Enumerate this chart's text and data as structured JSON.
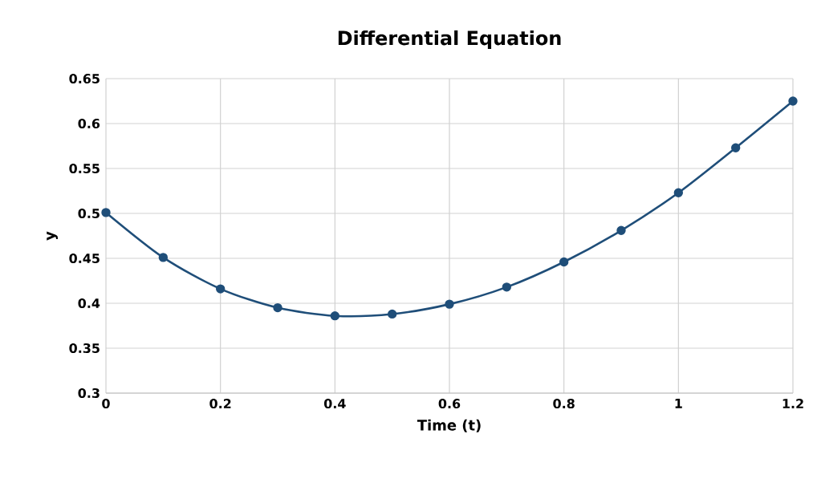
{
  "chart_data": {
    "type": "line",
    "title": "Differential Equation",
    "xlabel": "Time (t)",
    "ylabel": "y",
    "x": [
      0,
      0.1,
      0.2,
      0.3,
      0.4,
      0.5,
      0.6,
      0.7,
      0.8,
      0.9,
      1.0,
      1.1,
      1.2
    ],
    "series": [
      {
        "color": "#1f4e79",
        "values": [
          0.501,
          0.451,
          0.416,
          0.395,
          0.386,
          0.388,
          0.399,
          0.418,
          0.446,
          0.481,
          0.523,
          0.573,
          0.625
        ]
      }
    ],
    "xlim": [
      0,
      1.2
    ],
    "xticks": [
      0,
      0.2,
      0.4,
      0.6,
      0.8,
      1,
      1.2
    ],
    "ylim": [
      0.3,
      0.65
    ],
    "yticks": [
      0.3,
      0.35,
      0.4,
      0.45,
      0.5,
      0.55,
      0.6,
      0.65
    ],
    "grid": true,
    "marker": "circle",
    "line_style": "solid"
  }
}
